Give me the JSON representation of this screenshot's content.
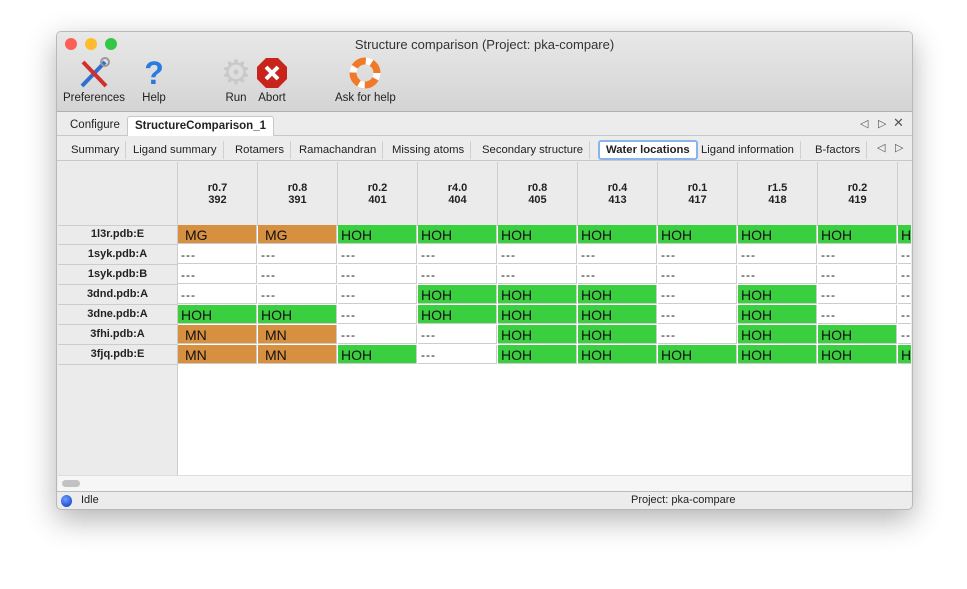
{
  "window": {
    "title": "Structure comparison (Project: pka-compare)"
  },
  "toolbar": [
    {
      "label": "Preferences",
      "icon": "tools-icon"
    },
    {
      "label": "Help",
      "icon": "help-icon"
    },
    {
      "label": "Run",
      "icon": "gear-icon"
    },
    {
      "label": "Abort",
      "icon": "abort-icon"
    },
    {
      "label": "Ask for help",
      "icon": "lifebuoy-icon"
    }
  ],
  "tabs": [
    "Configure",
    "StructureComparison_1"
  ],
  "active_tab": "StructureComparison_1",
  "subtabs": [
    "Summary",
    "Ligand summary",
    "Rotamers",
    "Ramachandran",
    "Missing atoms",
    "Secondary structure",
    "Water locations",
    "Ligand information",
    "B-factors"
  ],
  "active_subtab": "Water locations",
  "colors": {
    "MG": "#d79040",
    "MN": "#d79040",
    "HOH": "#3acf3f",
    "empty": "#ffffff"
  },
  "table": {
    "columns": [
      {
        "res": "r0.7",
        "num": "392"
      },
      {
        "res": "r0.8",
        "num": "391"
      },
      {
        "res": "r0.2",
        "num": "401"
      },
      {
        "res": "r4.0",
        "num": "404"
      },
      {
        "res": "r0.8",
        "num": "405"
      },
      {
        "res": "r0.4",
        "num": "413"
      },
      {
        "res": "r0.1",
        "num": "417"
      },
      {
        "res": "r1.5",
        "num": "418"
      },
      {
        "res": "r0.2",
        "num": "419"
      },
      {
        "res": "",
        "num": ""
      }
    ],
    "rows": [
      {
        "label": "1l3r.pdb:E",
        "cells": [
          "MG",
          "MG",
          "HOH",
          "HOH",
          "HOH",
          "HOH",
          "HOH",
          "HOH",
          "HOH",
          "HOH"
        ]
      },
      {
        "label": "1syk.pdb:A",
        "cells": [
          "---",
          "---",
          "---",
          "---",
          "---",
          "---",
          "---",
          "---",
          "---",
          "---"
        ]
      },
      {
        "label": "1syk.pdb:B",
        "cells": [
          "---",
          "---",
          "---",
          "---",
          "---",
          "---",
          "---",
          "---",
          "---",
          "---"
        ]
      },
      {
        "label": "3dnd.pdb:A",
        "cells": [
          "---",
          "---",
          "---",
          "HOH",
          "HOH",
          "HOH",
          "---",
          "HOH",
          "---",
          "---"
        ]
      },
      {
        "label": "3dne.pdb:A",
        "cells": [
          "HOH",
          "HOH",
          "---",
          "HOH",
          "HOH",
          "HOH",
          "---",
          "HOH",
          "---",
          "---"
        ]
      },
      {
        "label": "3fhi.pdb:A",
        "cells": [
          "MN",
          "MN",
          "---",
          "---",
          "HOH",
          "HOH",
          "---",
          "HOH",
          "HOH",
          "---"
        ]
      },
      {
        "label": "3fjq.pdb:E",
        "cells": [
          "MN",
          "MN",
          "HOH",
          "---",
          "HOH",
          "HOH",
          "HOH",
          "HOH",
          "HOH",
          "HOH"
        ]
      }
    ]
  },
  "status": {
    "state": "Idle",
    "project": "Project: pka-compare"
  }
}
